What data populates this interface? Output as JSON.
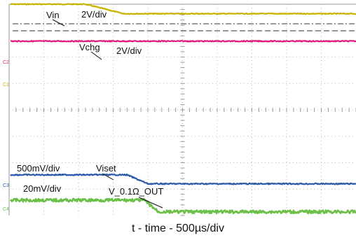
{
  "chart_data": {
    "type": "line",
    "xlabel": "t - time - 500µs/div",
    "x_divisions": 10,
    "y_divisions": 8,
    "grid": true,
    "series": [
      {
        "name": "Vin",
        "scale": "2V/div",
        "channel": "C2",
        "color": "#c8b400",
        "x_div": [
          0,
          2.2,
          3.3,
          10
        ],
        "level_div": [
          4.0,
          4.0,
          3.64,
          3.64
        ]
      },
      {
        "name": "Vchg",
        "scale": "2V/div",
        "channel": "C2",
        "color": "#e0197d",
        "x_div": [
          0,
          10
        ],
        "level_div": [
          2.6,
          2.6
        ]
      },
      {
        "name": "Viset",
        "scale": "500mV/div",
        "channel": "C3",
        "color": "#2a5aa8",
        "x_div": [
          0,
          3.4,
          4.0,
          10
        ],
        "level_div": [
          -2.46,
          -2.46,
          -2.8,
          -2.8
        ]
      },
      {
        "name": "V_0.1Ω_OUT",
        "scale": "20mV/div",
        "channel": "C4",
        "color": "#6cc04a",
        "x_div": [
          0,
          3.9,
          4.3,
          10
        ],
        "level_div": [
          -3.42,
          -3.42,
          -3.86,
          -3.86
        ]
      }
    ]
  },
  "labels": {
    "vin": "Vin",
    "vin_scale": "2V/div",
    "vchg": "Vchg",
    "vchg_scale": "2V/div",
    "viset_scale": "500mV/div",
    "viset": "Viset",
    "vout_scale": "20mV/div",
    "vout": "V_0.1Ω_OUT"
  },
  "channel_tags": {
    "c2": "C2",
    "c1": "C1",
    "c3": "C3",
    "c4": "C4"
  }
}
